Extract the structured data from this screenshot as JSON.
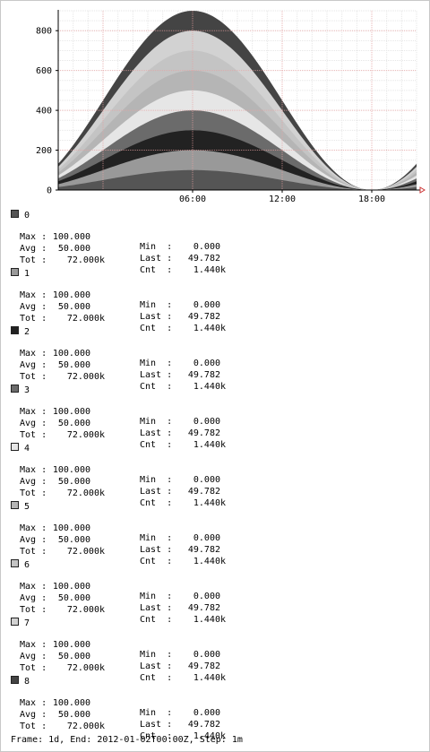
{
  "chart_data": {
    "type": "area",
    "stacked": true,
    "x_ticks": [
      "06:00",
      "12:00",
      "18:00"
    ],
    "y_ticks": [
      "0",
      "200",
      "400",
      "600",
      "800"
    ],
    "ylim": [
      0,
      900
    ],
    "x_range_hours": [
      -3,
      21
    ],
    "grid": true,
    "series_count": 9,
    "series_shape": "sine, each series 0..100, peak near 06:00, trough at 18:00",
    "colors": [
      "#555555",
      "#999999",
      "#222222",
      "#6b6b6b",
      "#e6e6e6",
      "#b5b5b5",
      "#c4c4c4",
      "#d2d2d2",
      "#444444"
    ]
  },
  "legend": [
    {
      "name": "0",
      "color": "#555555",
      "max": "100.000",
      "min": "0.000",
      "avg": "50.000",
      "last": "49.782",
      "tot": "72.000k",
      "cnt": "1.440k"
    },
    {
      "name": "1",
      "color": "#999999",
      "max": "100.000",
      "min": "0.000",
      "avg": "50.000",
      "last": "49.782",
      "tot": "72.000k",
      "cnt": "1.440k"
    },
    {
      "name": "2",
      "color": "#222222",
      "max": "100.000",
      "min": "0.000",
      "avg": "50.000",
      "last": "49.782",
      "tot": "72.000k",
      "cnt": "1.440k"
    },
    {
      "name": "3",
      "color": "#6b6b6b",
      "max": "100.000",
      "min": "0.000",
      "avg": "50.000",
      "last": "49.782",
      "tot": "72.000k",
      "cnt": "1.440k"
    },
    {
      "name": "4",
      "color": "#e6e6e6",
      "max": "100.000",
      "min": "0.000",
      "avg": "50.000",
      "last": "49.782",
      "tot": "72.000k",
      "cnt": "1.440k"
    },
    {
      "name": "5",
      "color": "#b5b5b5",
      "max": "100.000",
      "min": "0.000",
      "avg": "50.000",
      "last": "49.782",
      "tot": "72.000k",
      "cnt": "1.440k"
    },
    {
      "name": "6",
      "color": "#c4c4c4",
      "max": "100.000",
      "min": "0.000",
      "avg": "50.000",
      "last": "49.782",
      "tot": "72.000k",
      "cnt": "1.440k"
    },
    {
      "name": "7",
      "color": "#d2d2d2",
      "max": "100.000",
      "min": "0.000",
      "avg": "50.000",
      "last": "49.782",
      "tot": "72.000k",
      "cnt": "1.440k"
    },
    {
      "name": "8",
      "color": "#444444",
      "max": "100.000",
      "min": "0.000",
      "avg": "50.000",
      "last": "49.782",
      "tot": "72.000k",
      "cnt": "1.440k"
    }
  ],
  "labels": {
    "max": "Max :",
    "min": "Min  :",
    "avg": "Avg :",
    "last": "Last :",
    "tot": "Tot :",
    "cnt": "Cnt  :"
  },
  "footer": "Frame: 1d, End: 2012-01-02T00:00Z, Step: 1m"
}
